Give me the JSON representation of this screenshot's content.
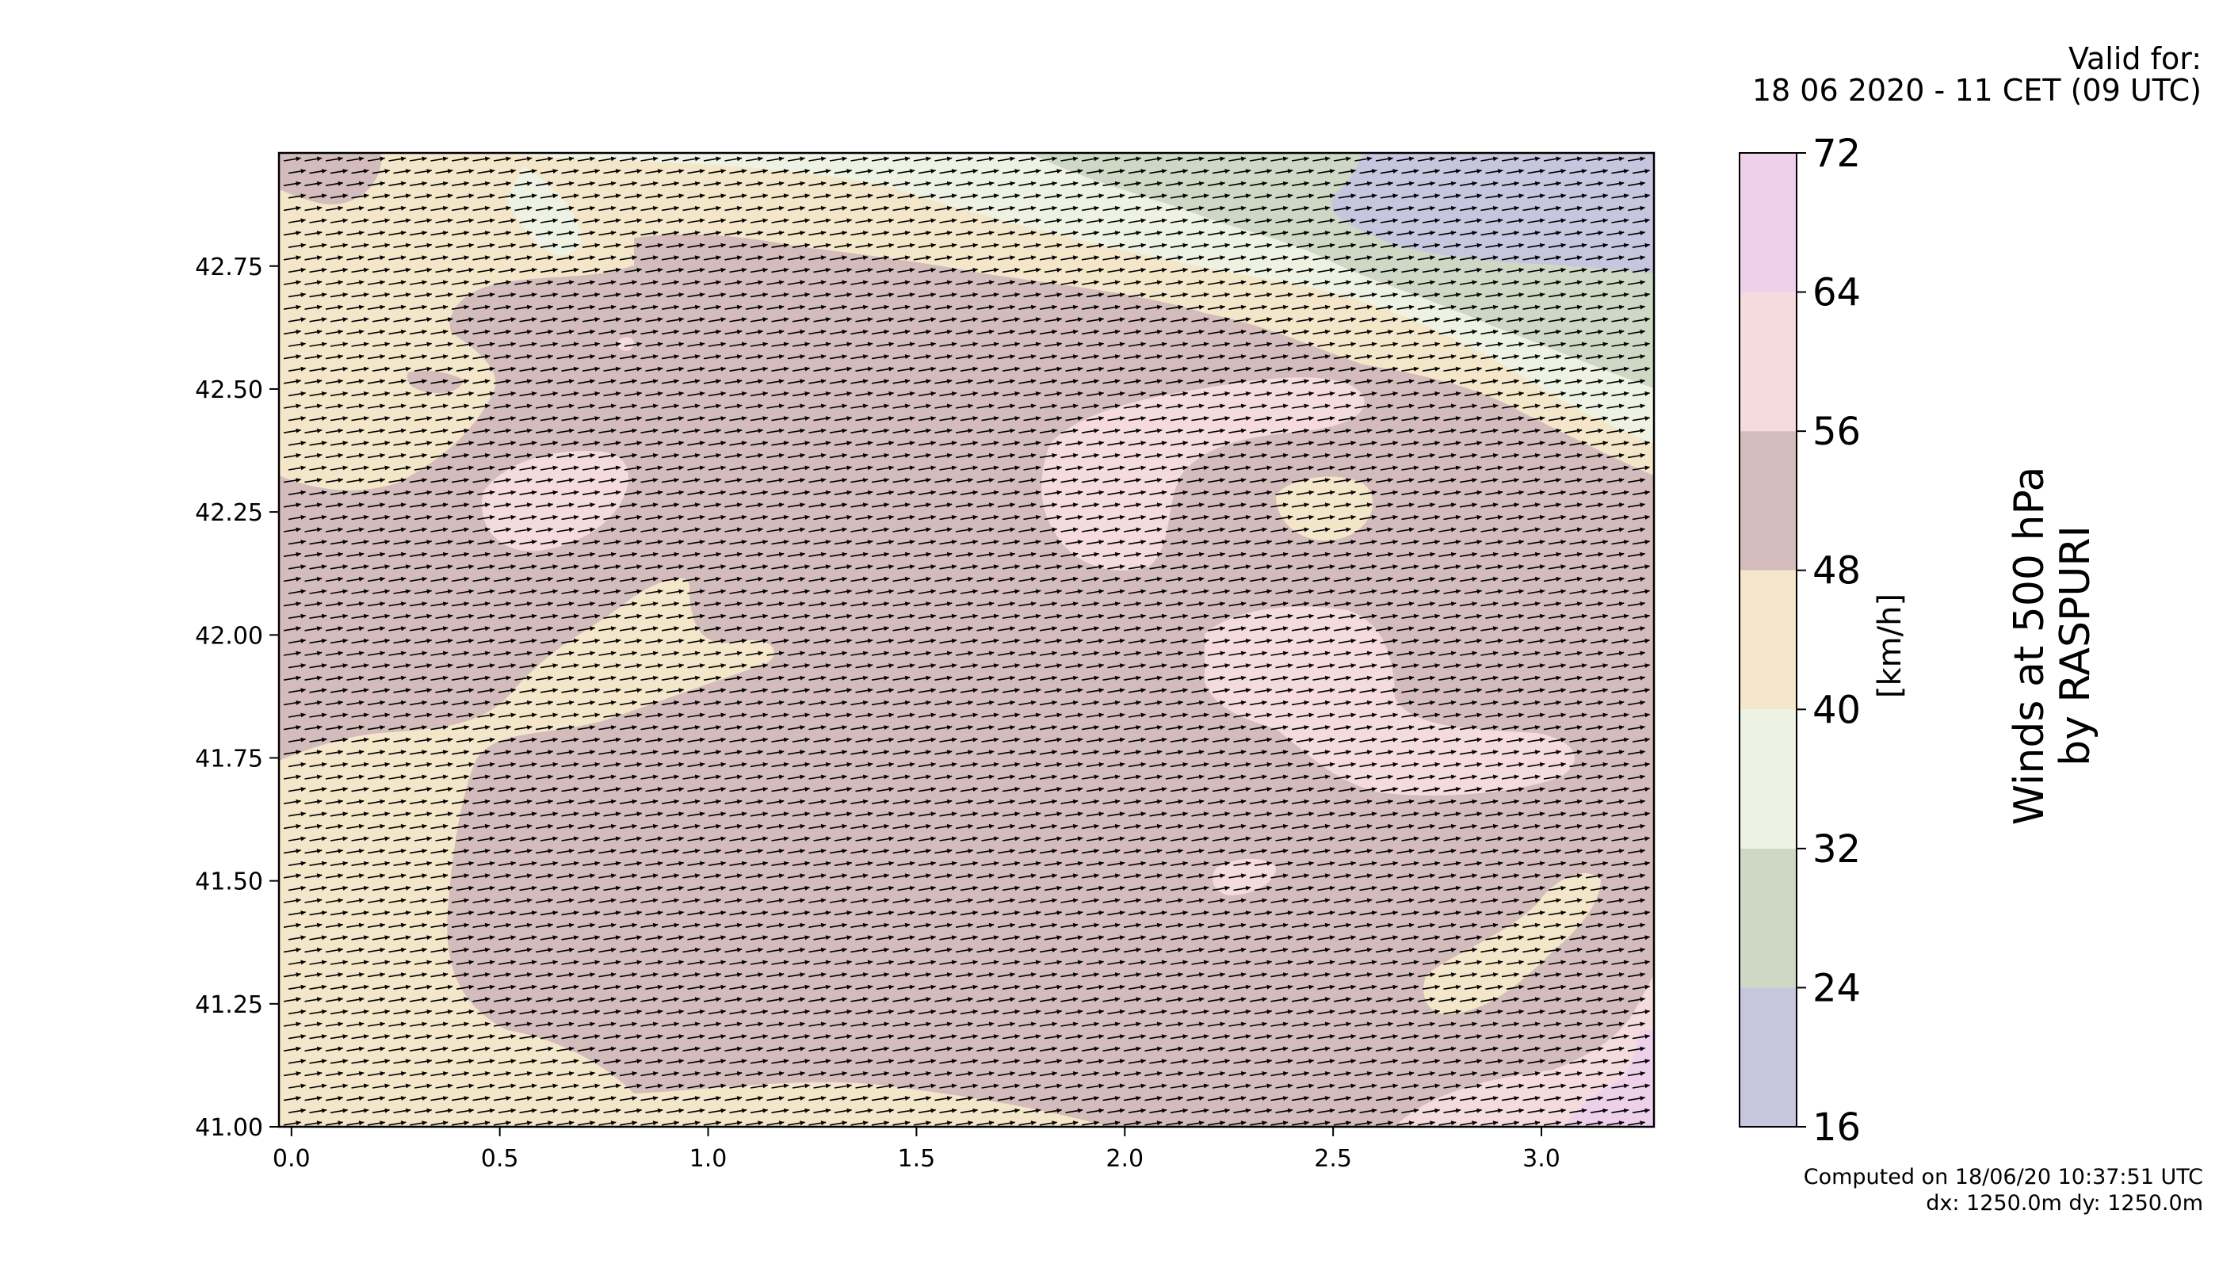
{
  "header": {
    "valid_label": "Valid for:",
    "valid_date": "18 06 2020 - 11 CET (09 UTC)"
  },
  "footer": {
    "computed": "Computed on 18/06/20 10:37:51 UTC",
    "grid_resolution": "dx: 1250.0m dy: 1250.0m"
  },
  "colorbar": {
    "title_line1": "Winds at 500 hPa",
    "title_line2": "by RASPURI",
    "unit": "[km/h]",
    "levels": [
      16,
      24,
      32,
      40,
      48,
      56,
      64,
      72
    ],
    "colors": [
      "#c6c6de",
      "#cfd8c4",
      "#eef2e2",
      "#f4e6c8",
      "#d4bcbc",
      "#f5dade",
      "#eed0ea"
    ]
  },
  "map": {
    "x_ticks": [
      "0.0",
      "0.5",
      "1.0",
      "1.5",
      "2.0",
      "2.5",
      "3.0"
    ],
    "y_ticks": [
      "41.00",
      "41.25",
      "41.50",
      "41.75",
      "42.00",
      "42.25",
      "42.50",
      "42.75"
    ],
    "xlim": [
      -0.03,
      3.27
    ],
    "ylim": [
      41.0,
      42.98
    ],
    "arrow_color": "#000000",
    "wind_direction": "west-southwest to east-northeast"
  }
}
